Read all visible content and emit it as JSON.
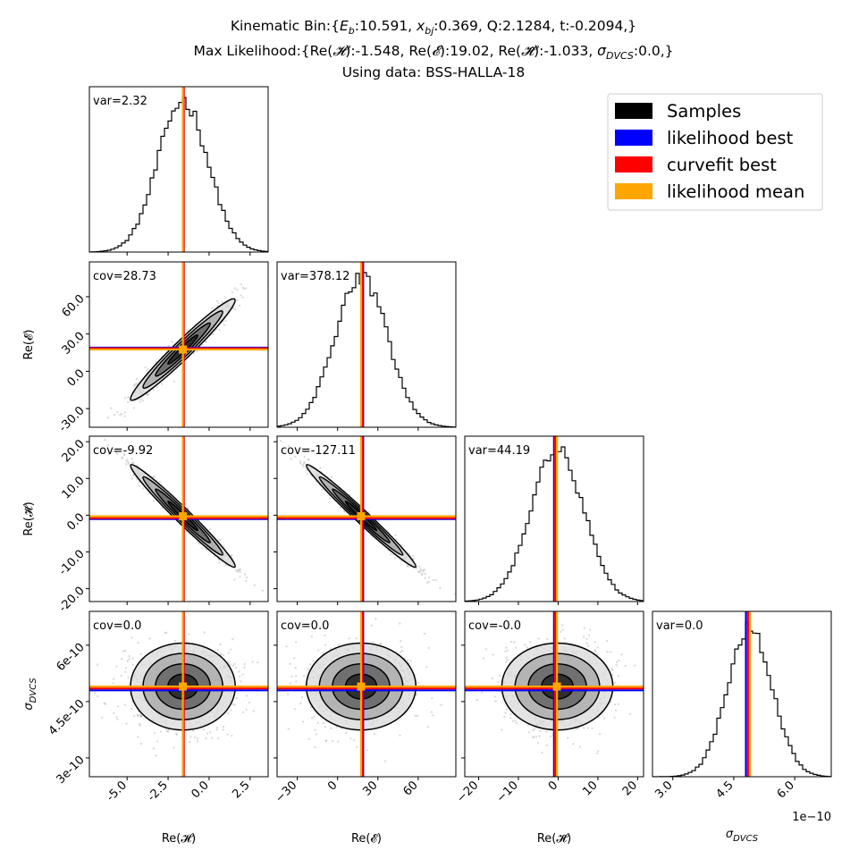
{
  "header": {
    "line1": "Kinematic Bin:{E_b:10.591, x_bj:0.369, Q:2.1284, t:-0.2094,}",
    "line2": "Max Likelihood:{Re(H):-1.548, Re(E):19.02, Re(H~):-1.033, σ_DVCS:0.0,}",
    "line3": "Using data: BSS-HALLA-18"
  },
  "legend": [
    {
      "label": "Samples",
      "color": "#000000"
    },
    {
      "label": "likelihood best",
      "color": "#0000ff"
    },
    {
      "label": "curvefit best",
      "color": "#ff0000"
    },
    {
      "label": "likelihood mean",
      "color": "#ffa500"
    }
  ],
  "chart_data": {
    "type": "corner",
    "params": [
      {
        "name": "Re(H)",
        "label": "Re(𝓗)",
        "range": [
          -7.3,
          3.6
        ],
        "ticks": [
          -5.0,
          -2.5,
          0.0,
          2.5
        ],
        "tick_labels": [
          "-5.0",
          "-2.5",
          "0.0",
          "2.5"
        ],
        "mean": -1.6,
        "sd": 1.52,
        "likelihood_best": -1.548,
        "curvefit_best": -1.55,
        "likelihood_mean": -1.6
      },
      {
        "name": "Re(E)",
        "label": "Re(𝓔)",
        "range": [
          -45,
          88
        ],
        "ticks": [
          -30,
          0,
          30,
          60
        ],
        "tick_labels": [
          "−30",
          "0",
          "30",
          "60"
        ],
        "ytick_labels": [
          "-30.0",
          "0.0",
          "30.0",
          "60.0"
        ],
        "mean": 17.5,
        "sd": 19.4,
        "likelihood_best": 19.02,
        "curvefit_best": 18.5,
        "likelihood_mean": 17.5
      },
      {
        "name": "Re(H~)",
        "label": "Re(𝓗̃)",
        "range": [
          -23.5,
          21.5
        ],
        "ticks": [
          -20,
          -10,
          0,
          10,
          20
        ],
        "tick_labels": [
          "−20",
          "−10",
          "0",
          "10",
          "20"
        ],
        "ytick_labels": [
          "-20.0",
          "-10.0",
          "0.0",
          "10.0",
          "20.0"
        ],
        "mean": -0.2,
        "sd": 6.65,
        "likelihood_best": -1.033,
        "curvefit_best": -0.8,
        "likelihood_mean": -0.3
      },
      {
        "name": "sigma_DVCS",
        "label": "σ_DVCS",
        "range": [
          2.5e-10,
          6.9e-10
        ],
        "ticks": [
          3e-10,
          4.5e-10,
          6e-10
        ],
        "tick_labels": [
          "3.0",
          "4.5",
          "6.0"
        ],
        "ytick_labels": [
          "3e-10",
          "4.5e-10",
          "6e-10"
        ],
        "offset_label": "1e−10",
        "mean": 4.9e-10,
        "sd": 5.5e-11,
        "likelihood_best": 4.8e-10,
        "curvefit_best": 4.85e-10,
        "likelihood_mean": 4.9e-10
      }
    ],
    "annotations": {
      "diag": [
        "var=2.32",
        "var=378.12",
        "var=44.19",
        "var=0.0"
      ],
      "lower": [
        {
          "row": 1,
          "col": 0,
          "text": "cov=28.73",
          "corr": 0.97
        },
        {
          "row": 2,
          "col": 0,
          "text": "cov=-9.92",
          "corr": -0.98
        },
        {
          "row": 2,
          "col": 1,
          "text": "cov=-127.11",
          "corr": -0.985
        },
        {
          "row": 3,
          "col": 0,
          "text": "cov=0.0",
          "corr": 0.0
        },
        {
          "row": 3,
          "col": 1,
          "text": "cov=0.0",
          "corr": 0.0
        },
        {
          "row": 3,
          "col": 2,
          "text": "cov=-0.0",
          "corr": 0.0
        }
      ]
    }
  }
}
